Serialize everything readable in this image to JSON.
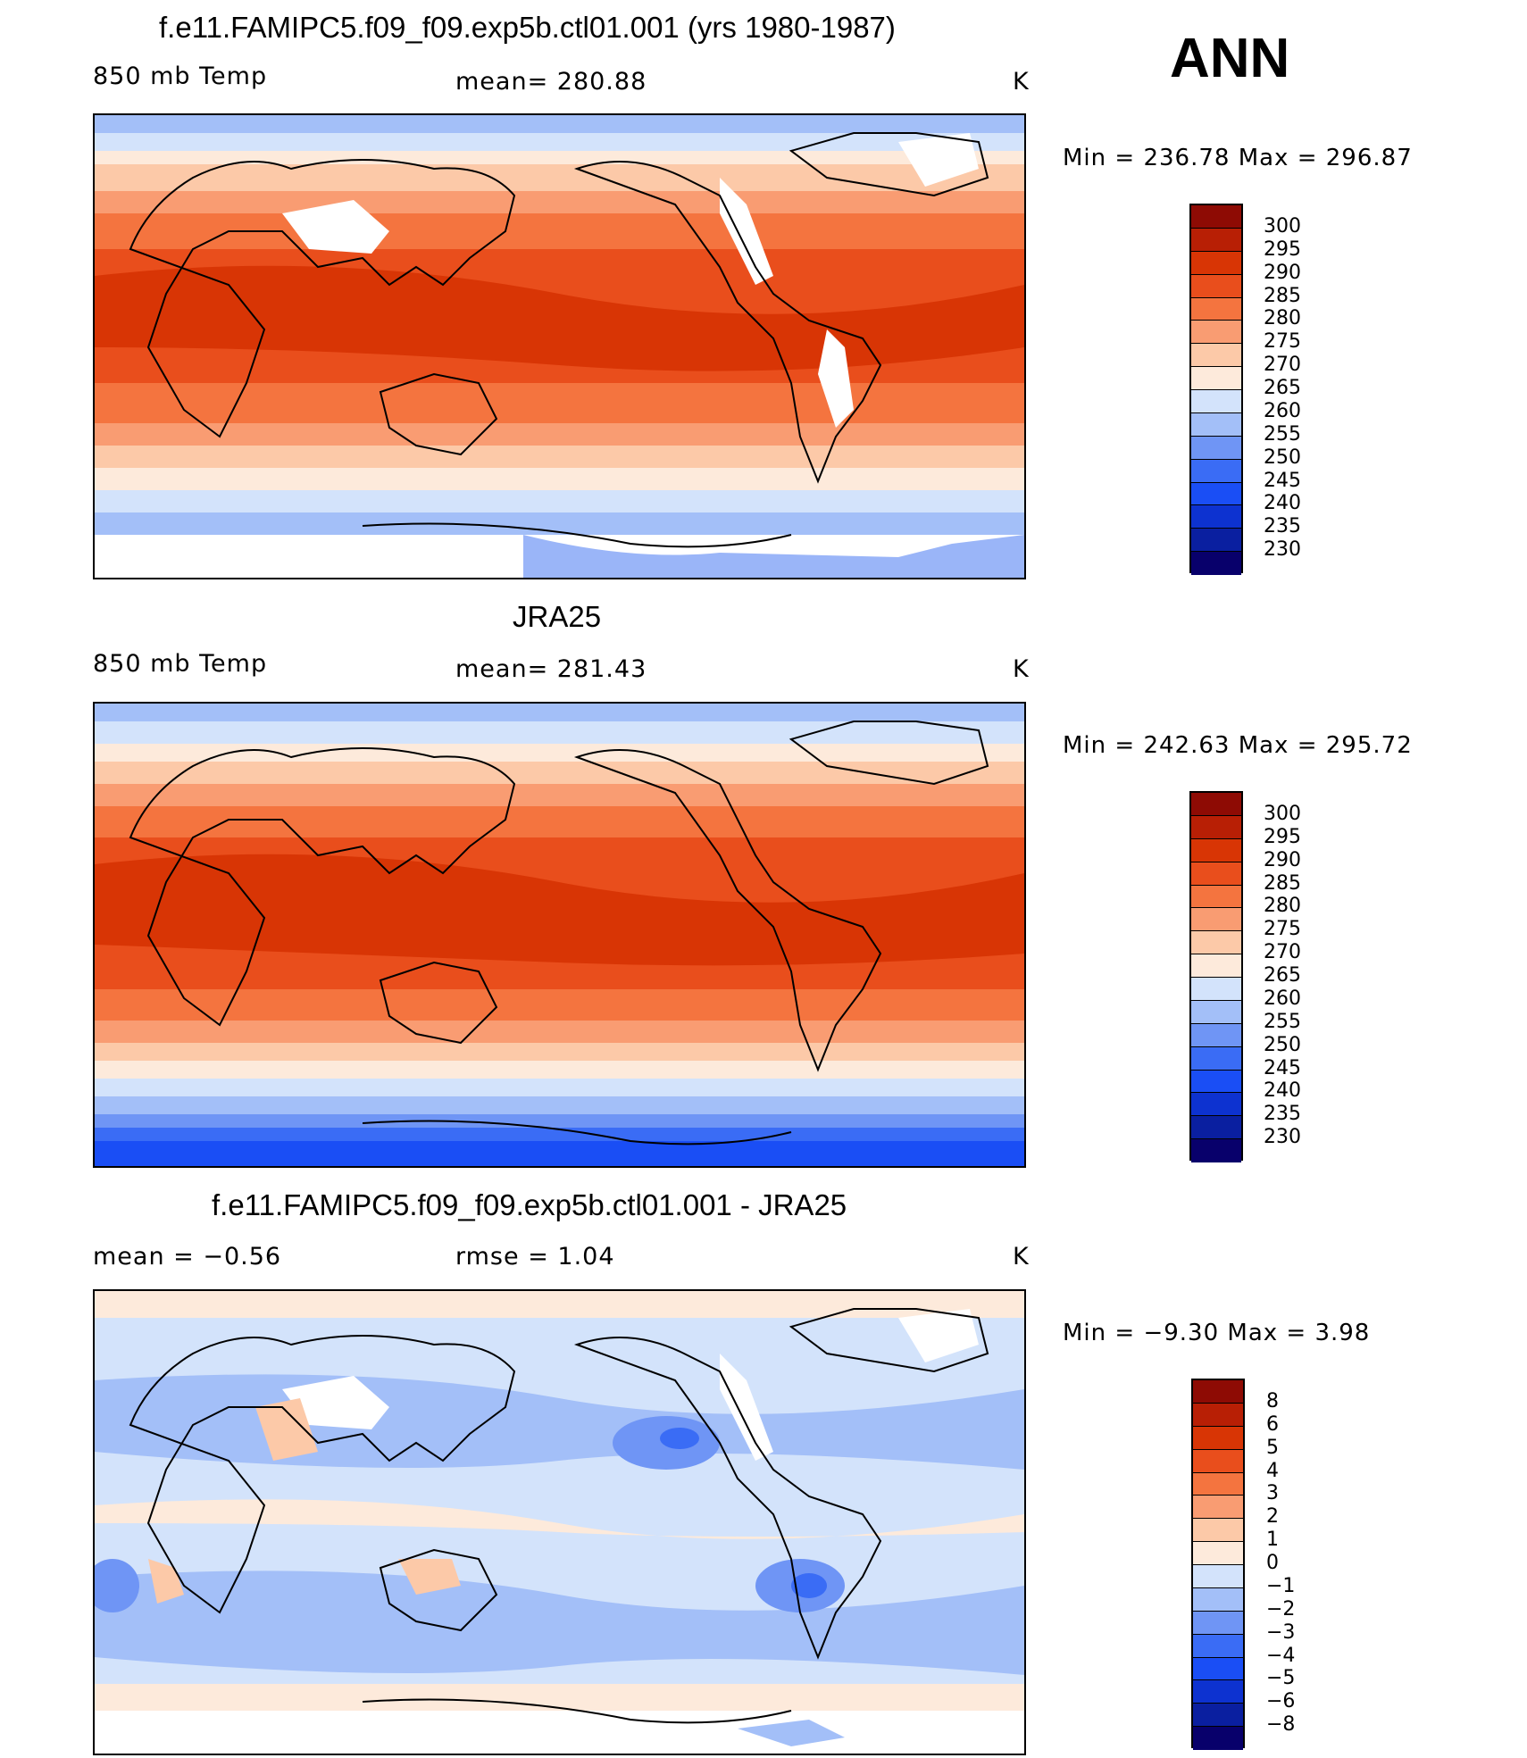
{
  "season": "ANN",
  "colors": {
    "temp_scale": [
      "#08006b",
      "#0a1fa0",
      "#0d32d0",
      "#1a4ef5",
      "#3a6cf5",
      "#6f95f5",
      "#a3bff8",
      "#d3e3fb",
      "#fdeadb",
      "#fcc9a8",
      "#f99c72",
      "#f4743f",
      "#e94e1c",
      "#d83505",
      "#b81f05",
      "#8e0b04"
    ],
    "diff_scale": [
      "#08006b",
      "#0a1fa0",
      "#0d32d0",
      "#1a4ef5",
      "#3a6cf5",
      "#6f95f5",
      "#a3bff8",
      "#d3e3fb",
      "#fdeadb",
      "#fcc9a8",
      "#f99c72",
      "#f4743f",
      "#e94e1c",
      "#d83505",
      "#b81f05",
      "#8e0b04"
    ]
  },
  "panels": [
    {
      "title": "f.e11.FAMIPC5.f09_f09.exp5b.ctl01.001 (yrs 1980-1987)",
      "left_label": "850 mb Temp",
      "center_label": "mean= 280.88",
      "units": "K",
      "minmax": "Min  =  236.78  Max  =  296.87",
      "colorbar_labels": [
        "300",
        "295",
        "290",
        "285",
        "280",
        "275",
        "270",
        "265",
        "260",
        "255",
        "250",
        "245",
        "240",
        "235",
        "230"
      ]
    },
    {
      "title": "JRA25",
      "left_label": "850 mb Temp",
      "center_label": "mean= 281.43",
      "units": "K",
      "minmax": "Min  =  242.63  Max  =  295.72",
      "colorbar_labels": [
        "300",
        "295",
        "290",
        "285",
        "280",
        "275",
        "270",
        "265",
        "260",
        "255",
        "250",
        "245",
        "240",
        "235",
        "230"
      ]
    },
    {
      "title": "f.e11.FAMIPC5.f09_f09.exp5b.ctl01.001 - JRA25",
      "left_label": "mean  =    −0.56",
      "center_label": "rmse  =     1.04",
      "units": "K",
      "minmax": "Min  =    −9.30  Max  =      3.98",
      "colorbar_labels": [
        "8",
        "6",
        "5",
        "4",
        "3",
        "2",
        "1",
        "0",
        "−1",
        "−2",
        "−3",
        "−4",
        "−5",
        "−6",
        "−8"
      ]
    }
  ]
}
